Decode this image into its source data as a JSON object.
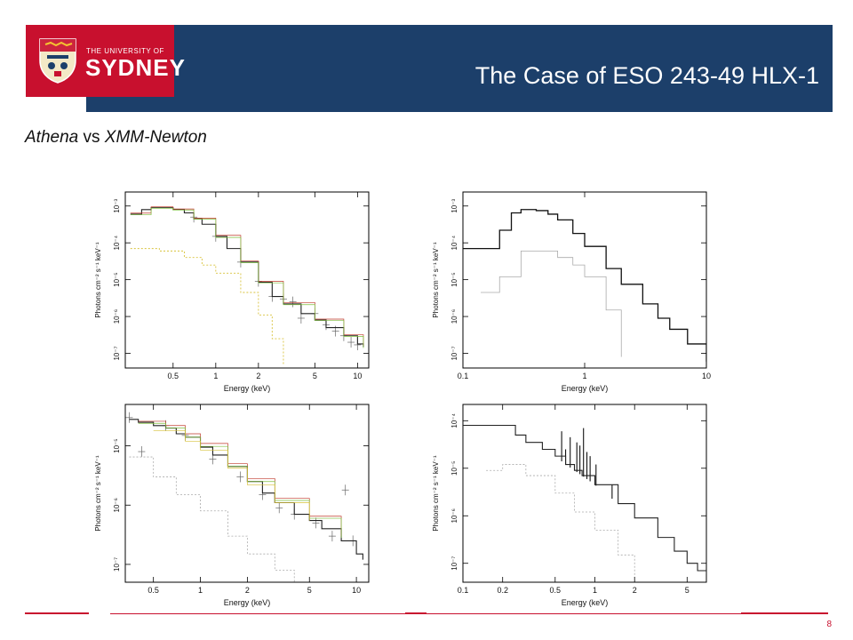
{
  "header": {
    "logo_line1": "THE UNIVERSITY OF",
    "logo_line2": "SYDNEY",
    "title": "The Case of ESO 243-49 HLX-1"
  },
  "subtitle": {
    "italic1": "Athena",
    "mid": " vs ",
    "italic2": "XMM-Newton"
  },
  "footer": {
    "page": "8"
  },
  "colors": {
    "brand_blue": "#1c3f6a",
    "brand_red": "#c8102e"
  },
  "chart_data": [
    {
      "type": "line",
      "xscale": "log",
      "yscale": "log",
      "xlim": [
        0.23,
        12
      ],
      "ylim": [
        4e-08,
        0.0024
      ],
      "xlabel": "Energy (keV)",
      "ylabel": "Photons cm⁻² s⁻¹ keV⁻¹",
      "xticks": [
        {
          "v": 0.5,
          "l": "0.5"
        },
        {
          "v": 1,
          "l": "1"
        },
        {
          "v": 2,
          "l": "2"
        },
        {
          "v": 5,
          "l": "5"
        },
        {
          "v": 10,
          "l": "10"
        }
      ],
      "yticks": [
        {
          "v": 0.001,
          "l": "10⁻³"
        },
        {
          "v": 0.0001,
          "l": "10⁻⁴"
        },
        {
          "v": 1e-05,
          "l": "10⁻⁵"
        },
        {
          "v": 1e-06,
          "l": "10⁻⁶"
        },
        {
          "v": 1e-07,
          "l": "10⁻⁷"
        }
      ],
      "series": [
        {
          "color": "#222222",
          "width": 1.1,
          "x": [
            0.25,
            0.3,
            0.35,
            0.4,
            0.5,
            0.6,
            0.7,
            0.8,
            1,
            1.2,
            1.5,
            2,
            2.5,
            3,
            4,
            5,
            6,
            8,
            10,
            11
          ],
          "y": [
            0.0006,
            0.0008,
            0.0009,
            0.0009,
            0.0008,
            0.00065,
            0.00045,
            0.00032,
            0.00015,
            7e-05,
            3e-05,
            8.5e-06,
            3.5e-06,
            2.2e-06,
            1.2e-06,
            8e-07,
            5e-07,
            3e-07,
            1.8e-07,
            1.5e-07
          ]
        },
        {
          "color": "#c0392b",
          "width": 0.7,
          "x": [
            0.25,
            0.35,
            0.5,
            0.7,
            1,
            1.5,
            2,
            3,
            5,
            8,
            11
          ],
          "y": [
            0.00064,
            0.00095,
            0.00083,
            0.00047,
            0.00016,
            3.2e-05,
            9e-06,
            2.4e-06,
            8.5e-07,
            3.2e-07,
            1.6e-07
          ]
        },
        {
          "color": "#7fbf3f",
          "width": 0.7,
          "x": [
            0.25,
            0.35,
            0.5,
            0.7,
            1,
            1.5,
            2,
            3,
            5,
            8,
            11
          ],
          "y": [
            0.00058,
            0.00087,
            0.00078,
            0.00044,
            0.00014,
            2.9e-05,
            8.2e-06,
            2.1e-06,
            7.8e-07,
            2.9e-07,
            1.4e-07
          ]
        },
        {
          "color": "#d8c23a",
          "width": 0.9,
          "dash": "2,2",
          "x": [
            0.25,
            0.4,
            0.6,
            0.8,
            1,
            1.5,
            2,
            2.5,
            3
          ],
          "y": [
            7e-05,
            6e-05,
            4e-05,
            2.5e-05,
            1.5e-05,
            4.5e-06,
            1.1e-06,
            2.5e-07,
            5e-08
          ]
        }
      ],
      "errorbars": {
        "x": [
          0.7,
          1,
          1.5,
          2,
          2.5,
          3,
          3.5,
          4,
          5,
          6,
          7,
          8,
          9,
          10
        ],
        "y": [
          0.0005,
          0.00015,
          3e-05,
          9e-06,
          3.5e-06,
          3e-06,
          2.5e-06,
          9e-07,
          1.2e-06,
          6e-07,
          4e-07,
          3e-07,
          2e-07,
          1.7e-07
        ]
      }
    },
    {
      "type": "line",
      "xscale": "log",
      "yscale": "log",
      "xlim": [
        0.1,
        10
      ],
      "ylim": [
        4e-08,
        0.0024
      ],
      "xlabel": "Energy (keV)",
      "ylabel": "Photons cm⁻² s⁻¹ keV⁻¹",
      "xticks": [
        {
          "v": 0.1,
          "l": "0.1"
        },
        {
          "v": 1,
          "l": "1"
        },
        {
          "v": 10,
          "l": "10"
        }
      ],
      "yticks": [
        {
          "v": 0.001,
          "l": "10⁻³"
        },
        {
          "v": 0.0001,
          "l": "10⁻⁴"
        },
        {
          "v": 1e-05,
          "l": "10⁻⁵"
        },
        {
          "v": 1e-06,
          "l": "10⁻⁶"
        },
        {
          "v": 1e-07,
          "l": "10⁻⁷"
        }
      ],
      "series": [
        {
          "color": "#111111",
          "width": 1.3,
          "x": [
            0.1,
            0.15,
            0.2,
            0.2001,
            0.25,
            0.3,
            0.35,
            0.4,
            0.5,
            0.6,
            0.8,
            1,
            1.5,
            2,
            3,
            4,
            5,
            7,
            10
          ],
          "y": [
            7e-05,
            7e-05,
            7e-05,
            0.00022,
            0.00065,
            0.0008,
            0.0008,
            0.00075,
            0.0006,
            0.00042,
            0.00018,
            8e-05,
            2e-05,
            7.5e-06,
            2.2e-06,
            9e-07,
            4.5e-07,
            1.8e-07,
            6e-08
          ]
        },
        {
          "color": "#aaaaaa",
          "width": 0.8,
          "x": [
            0.14,
            0.2,
            0.3,
            0.4,
            0.6,
            0.8,
            1,
            1.5,
            2
          ],
          "y": [
            4.5e-06,
            1.2e-05,
            6e-05,
            6e-05,
            4e-05,
            2.5e-05,
            1.2e-05,
            1.5e-06,
            8e-08
          ]
        }
      ]
    },
    {
      "type": "line",
      "xscale": "log",
      "yscale": "log",
      "xlim": [
        0.33,
        12
      ],
      "ylim": [
        5e-08,
        5e-05
      ],
      "xlabel": "Energy (keV)",
      "ylabel": "Photons cm⁻² s⁻¹ keV⁻¹",
      "xticks": [
        {
          "v": 0.5,
          "l": "0.5"
        },
        {
          "v": 1,
          "l": "1"
        },
        {
          "v": 2,
          "l": "2"
        },
        {
          "v": 5,
          "l": "5"
        },
        {
          "v": 10,
          "l": "10"
        }
      ],
      "yticks": [
        {
          "v": 1e-05,
          "l": "10⁻⁵"
        },
        {
          "v": 1e-06,
          "l": "10⁻⁶"
        },
        {
          "v": 1e-07,
          "l": "10⁻⁷"
        }
      ],
      "series": [
        {
          "color": "#222222",
          "width": 1.1,
          "x": [
            0.35,
            0.4,
            0.5,
            0.6,
            0.7,
            0.8,
            1,
            1.2,
            1.5,
            2,
            2.5,
            3,
            4,
            5,
            6,
            8,
            10,
            11
          ],
          "y": [
            2.8e-05,
            2.5e-05,
            2.2e-05,
            2e-05,
            1.6e-05,
            1.4e-05,
            9.5e-06,
            7e-06,
            4.5e-06,
            2.5e-06,
            1.6e-06,
            1.1e-06,
            7e-07,
            5.5e-07,
            4e-07,
            2.5e-07,
            1.5e-07,
            1.2e-07
          ]
        },
        {
          "color": "#c0392b",
          "width": 0.7,
          "x": [
            0.4,
            0.6,
            0.8,
            1,
            1.5,
            2,
            3,
            5,
            8
          ],
          "y": [
            2.6e-05,
            2.2e-05,
            1.6e-05,
            1.1e-05,
            5e-06,
            2.8e-06,
            1.3e-06,
            6.5e-07,
            3e-07
          ]
        },
        {
          "color": "#7fbf3f",
          "width": 0.7,
          "x": [
            0.4,
            0.6,
            0.8,
            1,
            1.5,
            2,
            3,
            5,
            8
          ],
          "y": [
            2.4e-05,
            2e-05,
            1.4e-05,
            9.8e-06,
            4.5e-06,
            2.5e-06,
            1.2e-06,
            6e-07,
            2.8e-07
          ]
        },
        {
          "color": "#d8c23a",
          "width": 0.7,
          "x": [
            0.5,
            0.8,
            1,
            1.5,
            2,
            3,
            5
          ],
          "y": [
            1.8e-05,
            1.2e-05,
            8.5e-06,
            4.2e-06,
            2.2e-06,
            1.1e-06,
            5.5e-07
          ]
        },
        {
          "color": "#aaaaaa",
          "width": 0.8,
          "dash": "2,2",
          "x": [
            0.35,
            0.5,
            0.7,
            1,
            1.5,
            2,
            3,
            4
          ],
          "y": [
            6.5e-06,
            3e-06,
            1.5e-06,
            8e-07,
            3e-07,
            1.5e-07,
            8e-08,
            5e-08
          ]
        }
      ],
      "errorbars": {
        "x": [
          0.35,
          0.42,
          0.6,
          0.8,
          1.2,
          1.8,
          2.5,
          3.2,
          4,
          5.5,
          7,
          8.5,
          9.5
        ],
        "y": [
          3e-05,
          8e-06,
          2.2e-05,
          1.5e-05,
          6e-06,
          3e-06,
          1.5e-06,
          9e-07,
          7e-07,
          5e-07,
          3e-07,
          1.8e-06,
          2.5e-07
        ]
      }
    },
    {
      "type": "line",
      "xscale": "log",
      "yscale": "log",
      "xlim": [
        0.1,
        7
      ],
      "ylim": [
        4e-08,
        0.00022
      ],
      "xlabel": "Energy (keV)",
      "ylabel": "Photons cm⁻² s⁻¹ keV⁻¹",
      "xticks": [
        {
          "v": 0.1,
          "l": "0.1"
        },
        {
          "v": 0.2,
          "l": "0.2"
        },
        {
          "v": 0.5,
          "l": "0.5"
        },
        {
          "v": 1,
          "l": "1"
        },
        {
          "v": 2,
          "l": "2"
        },
        {
          "v": 5,
          "l": "5"
        }
      ],
      "yticks": [
        {
          "v": 0.0001,
          "l": "10⁻⁴"
        },
        {
          "v": 1e-05,
          "l": "10⁻⁵"
        },
        {
          "v": 1e-06,
          "l": "10⁻⁶"
        },
        {
          "v": 1e-07,
          "l": "10⁻⁷"
        }
      ],
      "series": [
        {
          "color": "#222222",
          "width": 1.1,
          "x": [
            0.1,
            0.15,
            0.2,
            0.25,
            0.3,
            0.4,
            0.5,
            0.6,
            0.7,
            0.8,
            1,
            1.5,
            2,
            3,
            4,
            5,
            6,
            7
          ],
          "y": [
            8e-05,
            8e-05,
            8e-05,
            5e-05,
            3.5e-05,
            2.5e-05,
            1.8e-05,
            1.2e-05,
            9e-06,
            7e-06,
            4.5e-06,
            1.8e-06,
            9e-07,
            3.5e-07,
            1.8e-07,
            1e-07,
            7e-08,
            6e-08
          ]
        },
        {
          "color": "#aaaaaa",
          "width": 0.8,
          "dash": "2,2",
          "x": [
            0.15,
            0.2,
            0.3,
            0.5,
            0.7,
            1,
            1.5,
            2
          ],
          "y": [
            9e-06,
            1.2e-05,
            7e-06,
            3e-06,
            1.2e-06,
            5e-07,
            1.5e-07,
            5e-08
          ]
        }
      ],
      "lines": [
        {
          "x": 0.56,
          "y": 6e-05
        },
        {
          "x": 0.6,
          "y": 2.5e-05
        },
        {
          "x": 0.65,
          "y": 4.5e-05
        },
        {
          "x": 0.73,
          "y": 3.5e-05
        },
        {
          "x": 0.77,
          "y": 3e-05
        },
        {
          "x": 0.82,
          "y": 7e-05
        },
        {
          "x": 0.87,
          "y": 2.2e-05
        },
        {
          "x": 0.92,
          "y": 1.8e-05
        },
        {
          "x": 1.02,
          "y": 1.2e-05
        },
        {
          "x": 1.35,
          "y": 4.5e-06
        }
      ]
    }
  ]
}
